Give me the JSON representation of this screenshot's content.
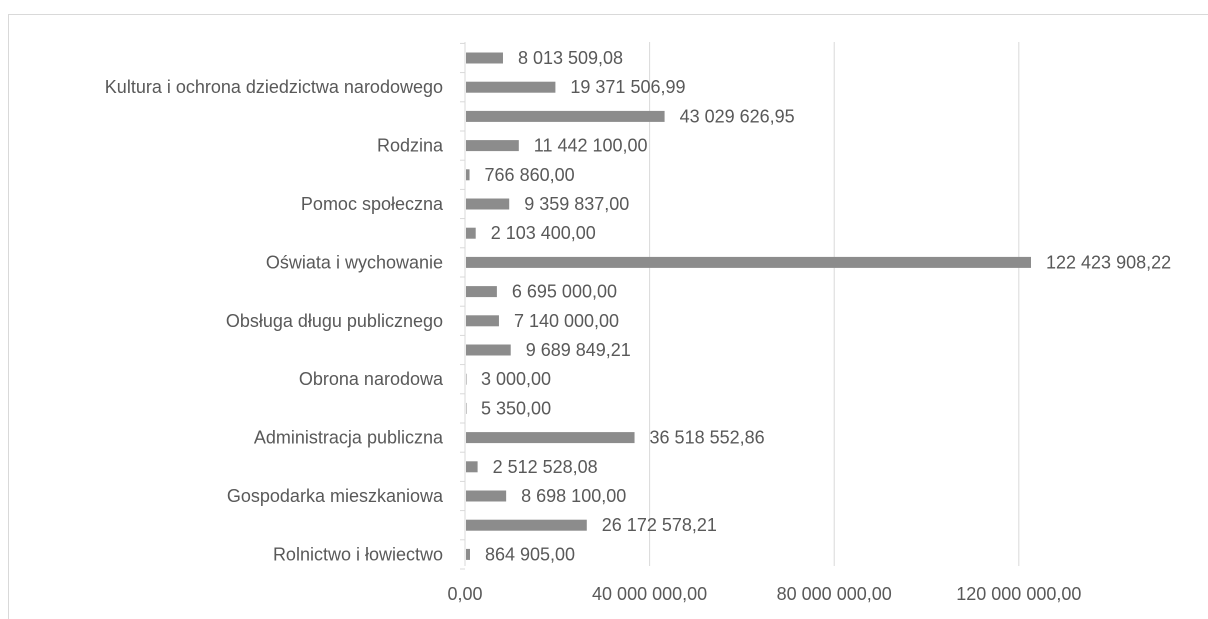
{
  "chart_data": {
    "type": "bar",
    "orientation": "horizontal",
    "title": "",
    "xlabel": "",
    "ylabel": "",
    "xlim": [
      0,
      140000000
    ],
    "grid": true,
    "legend": "none",
    "bar_color": "#8c8c8c",
    "categories": [
      "Rolnictwo i łowiectwo",
      "",
      "Gospodarka mieszkaniowa",
      "",
      "Administracja publiczna",
      "",
      "Obrona narodowa",
      "",
      "Obsługa długu publicznego",
      "",
      "Oświata i wychowanie",
      "",
      "Pomoc społeczna",
      "",
      "Rodzina",
      "",
      "Kultura i ochrona dziedzictwa narodowego",
      ""
    ],
    "values": [
      864905.0,
      26172578.21,
      8698100.0,
      2512528.08,
      36518552.86,
      5350.0,
      3000.0,
      9689849.21,
      7140000.0,
      6695000.0,
      122423908.22,
      2103400.0,
      9359837.0,
      766860.0,
      11442100.0,
      43029626.95,
      19371506.99,
      8013509.08
    ],
    "value_labels": [
      "864 905,00",
      "26 172 578,21",
      "8 698 100,00",
      "2 512 528,08",
      "36 518 552,86",
      "5 350,00",
      "3 000,00",
      "9 689 849,21",
      "7 140 000,00",
      "6 695 000,00",
      "122 423 908,22",
      "2 103 400,00",
      "9 359 837,00",
      "766 860,00",
      "11 442 100,00",
      "43 029 626,95",
      "19 371 506,99",
      "8 013 509,08"
    ],
    "ticks": [
      0,
      40000000,
      80000000,
      120000000
    ],
    "tick_labels": [
      "0,00",
      "40 000 000,00",
      "80 000 000,00",
      "120 000 000,00"
    ]
  }
}
